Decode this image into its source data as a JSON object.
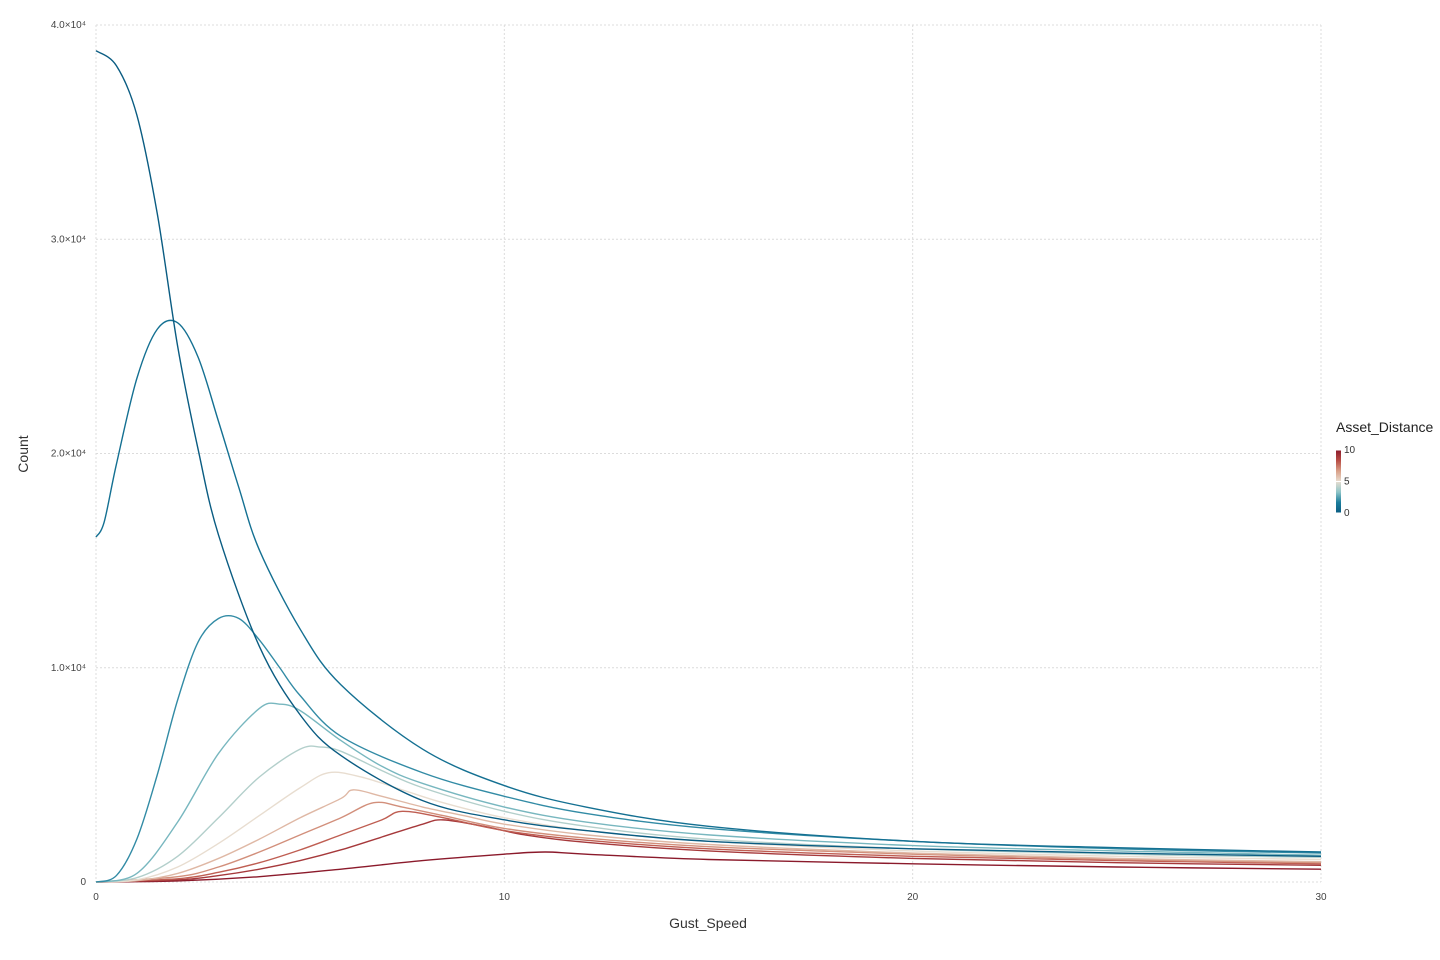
{
  "chart_data": {
    "type": "line",
    "title": "",
    "xlabel": "Gust_Speed",
    "ylabel": "Count",
    "xlim": [
      0,
      30
    ],
    "ylim": [
      0,
      40000
    ],
    "x_ticks": [
      {
        "value": 0,
        "label": "0"
      },
      {
        "value": 10,
        "label": "10"
      },
      {
        "value": 20,
        "label": "20"
      },
      {
        "value": 30,
        "label": "30"
      }
    ],
    "y_ticks": [
      {
        "value": 0,
        "label": "0"
      },
      {
        "value": 10000,
        "label": "1.0×10⁴"
      },
      {
        "value": 20000,
        "label": "2.0×10⁴"
      },
      {
        "value": 30000,
        "label": "3.0×10⁴"
      },
      {
        "value": 40000,
        "label": "4.0×10⁴"
      }
    ],
    "grid": true,
    "legend": {
      "title": "Asset_Distance",
      "type": "colorbar",
      "placement": "right",
      "min": 0,
      "max": 10,
      "ticks": [
        {
          "value": 0,
          "label": "0"
        },
        {
          "value": 5,
          "label": "5"
        },
        {
          "value": 10,
          "label": "10"
        }
      ],
      "colors": [
        "#0a5c82",
        "#1b7d9c",
        "#8fc5c8",
        "#e8ddd0",
        "#d9a088",
        "#b84d45",
        "#8b1a2b"
      ]
    },
    "series": [
      {
        "asset_distance": 0,
        "x": [
          0,
          0.5,
          1,
          1.5,
          2,
          2.5,
          3,
          4,
          5,
          6,
          8,
          10,
          12,
          15,
          20,
          25,
          30
        ],
        "values": [
          38800,
          38100,
          35800,
          31200,
          25000,
          20200,
          16200,
          11000,
          7800,
          5900,
          3800,
          2900,
          2400,
          1900,
          1550,
          1350,
          1200
        ]
      },
      {
        "asset_distance": 1,
        "x": [
          0,
          0.2,
          0.5,
          1,
          1.5,
          2,
          2.5,
          3,
          3.5,
          4,
          5,
          6,
          8,
          10,
          12,
          15,
          20,
          25,
          30
        ],
        "values": [
          16100,
          16800,
          19500,
          23500,
          25800,
          26100,
          24500,
          21500,
          18400,
          15500,
          11800,
          9200,
          6200,
          4500,
          3500,
          2600,
          1900,
          1600,
          1400
        ]
      },
      {
        "asset_distance": 2,
        "x": [
          0,
          0.5,
          1,
          1.5,
          2,
          2.5,
          3,
          3.5,
          4,
          4.5,
          5,
          6,
          8,
          10,
          12,
          15,
          20,
          25,
          30
        ],
        "values": [
          0,
          300,
          2000,
          5000,
          8500,
          11200,
          12300,
          12300,
          11300,
          10000,
          8700,
          6800,
          5100,
          4000,
          3200,
          2500,
          1900,
          1550,
          1350
        ]
      },
      {
        "asset_distance": 3,
        "x": [
          0,
          1,
          2,
          3,
          4,
          4.5,
          5,
          6,
          7,
          8,
          10,
          12,
          15,
          20,
          25,
          30
        ],
        "values": [
          0,
          400,
          2800,
          6000,
          8100,
          8300,
          8000,
          6600,
          5400,
          4600,
          3500,
          2800,
          2200,
          1700,
          1450,
          1250
        ]
      },
      {
        "asset_distance": 4,
        "x": [
          0,
          1,
          2,
          3,
          4,
          5,
          5.5,
          6,
          7,
          8,
          10,
          12,
          15,
          20,
          25,
          30
        ],
        "values": [
          0,
          200,
          1200,
          3000,
          4900,
          6200,
          6300,
          6100,
          5200,
          4400,
          3300,
          2600,
          2000,
          1550,
          1300,
          1150
        ]
      },
      {
        "asset_distance": 5,
        "x": [
          0,
          1,
          2,
          3,
          4,
          5,
          5.7,
          6.5,
          7.5,
          8.5,
          10,
          12,
          15,
          20,
          25,
          30
        ],
        "values": [
          0,
          100,
          700,
          1800,
          3100,
          4400,
          5100,
          4900,
          4300,
          3700,
          3000,
          2400,
          1900,
          1450,
          1200,
          1050
        ]
      },
      {
        "asset_distance": 6,
        "x": [
          0,
          1,
          2,
          3,
          4,
          5,
          6,
          6.3,
          7,
          8,
          9,
          10,
          12,
          15,
          20,
          25,
          30
        ],
        "values": [
          0,
          60,
          400,
          1100,
          2000,
          3000,
          3900,
          4300,
          4000,
          3500,
          3100,
          2700,
          2200,
          1750,
          1350,
          1100,
          950
        ]
      },
      {
        "asset_distance": 7,
        "x": [
          0,
          2,
          3,
          4,
          5,
          6,
          6.8,
          7.5,
          8.5,
          10,
          12,
          15,
          20,
          25,
          30
        ],
        "values": [
          0,
          250,
          700,
          1400,
          2200,
          3000,
          3700,
          3500,
          3100,
          2500,
          2050,
          1650,
          1300,
          1050,
          900
        ]
      },
      {
        "asset_distance": 8,
        "x": [
          0,
          2,
          3,
          4,
          5,
          6,
          7,
          7.5,
          8.5,
          10,
          12,
          15,
          20,
          25,
          30
        ],
        "values": [
          0,
          150,
          450,
          900,
          1500,
          2200,
          2900,
          3300,
          3000,
          2400,
          1950,
          1550,
          1200,
          1000,
          850
        ]
      },
      {
        "asset_distance": 9,
        "x": [
          0,
          2,
          3,
          4,
          5,
          6,
          7,
          8,
          8.5,
          9.5,
          10.5,
          12,
          15,
          20,
          25,
          30
        ],
        "values": [
          0,
          100,
          300,
          600,
          1000,
          1500,
          2100,
          2700,
          2900,
          2600,
          2200,
          1850,
          1450,
          1100,
          900,
          780
        ]
      },
      {
        "asset_distance": 10,
        "x": [
          0,
          2,
          4,
          6,
          8,
          10,
          11,
          12,
          15,
          20,
          25,
          30
        ],
        "values": [
          0,
          50,
          250,
          600,
          1000,
          1300,
          1400,
          1300,
          1050,
          850,
          700,
          600
        ]
      }
    ]
  }
}
